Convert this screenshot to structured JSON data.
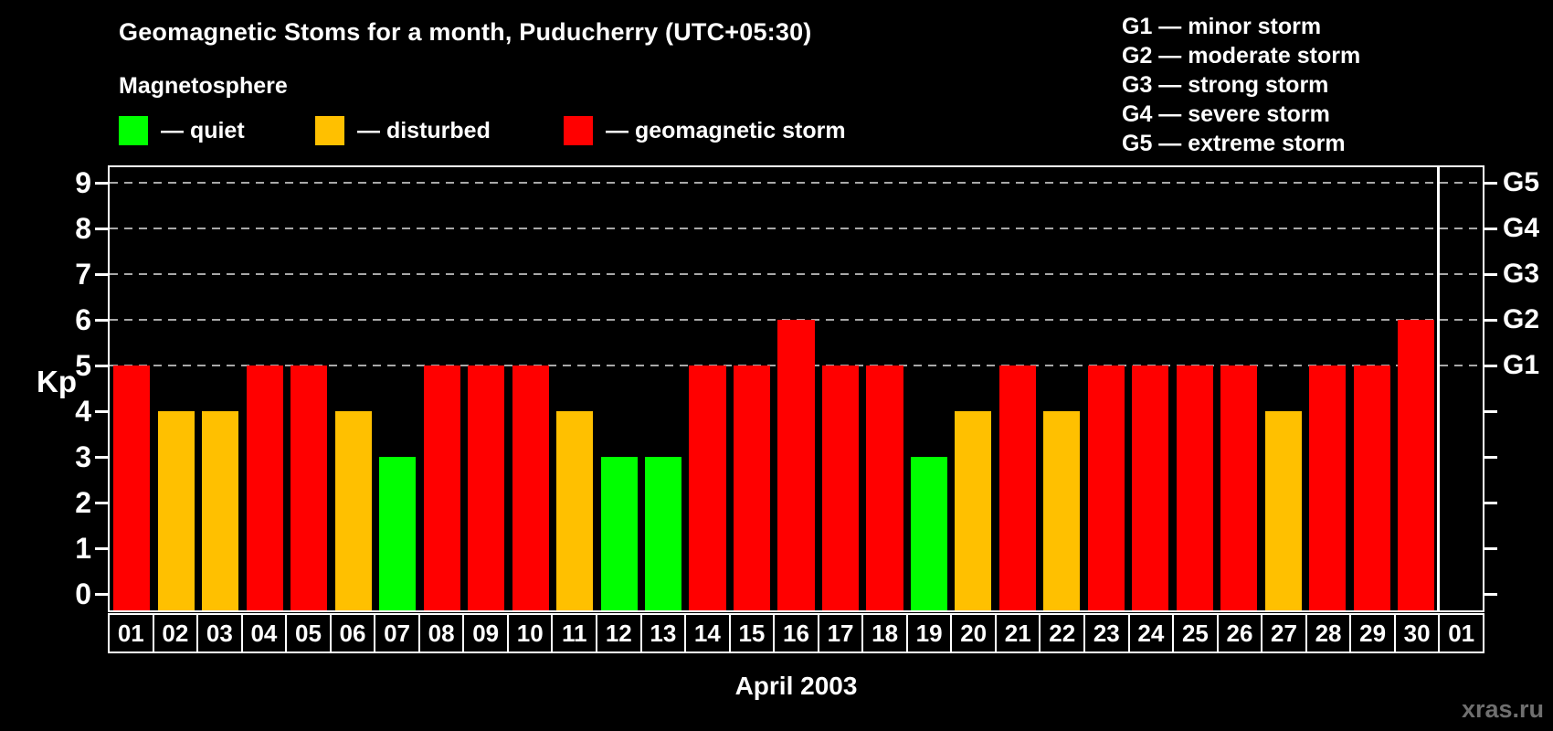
{
  "header": {
    "title": "Geomagnetic Stoms for a month, Puducherry (UTC+05:30)"
  },
  "legend": {
    "heading": "Magnetosphere",
    "items": [
      {
        "key": "quiet",
        "label": "— quiet",
        "color": "#00FF00"
      },
      {
        "key": "disturbed",
        "label": "— disturbed",
        "color": "#FFC000"
      },
      {
        "key": "storm",
        "label": "— geomagnetic storm",
        "color": "#FF0000"
      }
    ]
  },
  "g_legend": [
    "G1 — minor storm",
    "G2 — moderate storm",
    "G3 — strong storm",
    "G4 — severe storm",
    "G5 — extreme storm"
  ],
  "colors": {
    "quiet": "#00FF00",
    "disturbed": "#FFC000",
    "storm": "#FF0000",
    "grid": "#A8A8A8",
    "axis": "#FFFFFF",
    "background": "#000000",
    "watermark": "#6F6F6F"
  },
  "chart_data": {
    "type": "bar",
    "title": "Geomagnetic Stoms for a month, Puducherry (UTC+05:30)",
    "xlabel": "April 2003",
    "ylabel": "Kp",
    "ylim": [
      0,
      9
    ],
    "yticks": [
      0,
      1,
      2,
      3,
      4,
      5,
      6,
      7,
      8,
      9
    ],
    "grid_levels": [
      5,
      6,
      7,
      8,
      9
    ],
    "grid_style": "dashed",
    "legend_position": "top",
    "categories": [
      "01",
      "02",
      "03",
      "04",
      "05",
      "06",
      "07",
      "08",
      "09",
      "10",
      "11",
      "12",
      "13",
      "14",
      "15",
      "16",
      "17",
      "18",
      "19",
      "20",
      "21",
      "22",
      "23",
      "24",
      "25",
      "26",
      "27",
      "28",
      "29",
      "30",
      "01"
    ],
    "values": [
      5,
      4,
      4,
      5,
      5,
      4,
      3,
      5,
      5,
      5,
      4,
      3,
      3,
      5,
      5,
      6,
      5,
      5,
      3,
      4,
      5,
      4,
      5,
      5,
      5,
      5,
      4,
      5,
      5,
      6,
      null
    ],
    "statuses": [
      "storm",
      "disturbed",
      "disturbed",
      "storm",
      "storm",
      "disturbed",
      "quiet",
      "storm",
      "storm",
      "storm",
      "disturbed",
      "quiet",
      "quiet",
      "storm",
      "storm",
      "storm",
      "storm",
      "storm",
      "quiet",
      "disturbed",
      "storm",
      "disturbed",
      "storm",
      "storm",
      "storm",
      "storm",
      "disturbed",
      "storm",
      "storm",
      "storm",
      null
    ],
    "right_axis": [
      {
        "label": "G1",
        "kp": 5
      },
      {
        "label": "G2",
        "kp": 6
      },
      {
        "label": "G3",
        "kp": 7
      },
      {
        "label": "G4",
        "kp": 8
      },
      {
        "label": "G5",
        "kp": 9
      }
    ],
    "month_boundary_after": 30
  },
  "watermark": "xras.ru"
}
